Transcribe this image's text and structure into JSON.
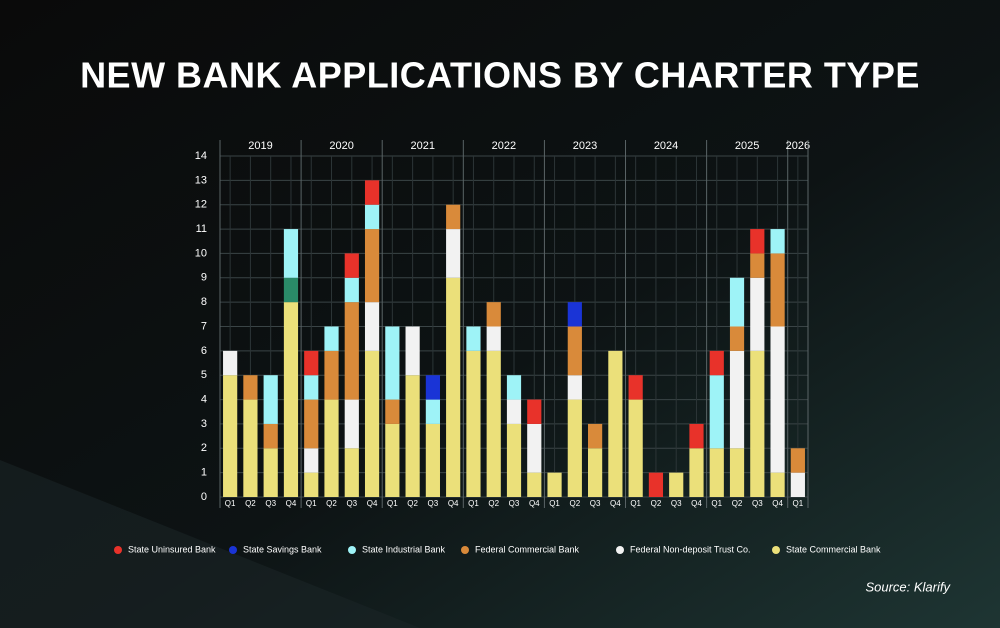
{
  "chart_data": {
    "type": "stacked-bar",
    "title": "NEW BANK APPLICATIONS BY CHARTER TYPE",
    "source": "Source: Klarify",
    "years": [
      "2019",
      "2020",
      "2021",
      "2022",
      "2023",
      "2024",
      "2025",
      "2026"
    ],
    "categories": [
      "Q1",
      "Q2",
      "Q3",
      "Q4",
      "Q1",
      "Q2",
      "Q3",
      "Q4",
      "Q1",
      "Q2",
      "Q3",
      "Q4",
      "Q1",
      "Q2",
      "Q3",
      "Q4",
      "Q1",
      "Q2",
      "Q3",
      "Q4",
      "Q1",
      "Q2",
      "Q3",
      "Q4",
      "Q1",
      "Q2",
      "Q3",
      "Q4",
      "Q1"
    ],
    "series": [
      {
        "name": "State Uninsured Bank",
        "color": "#e8322a",
        "values": [
          0,
          0,
          0,
          0,
          1,
          0,
          1,
          1,
          0,
          0,
          0,
          0,
          0,
          0,
          0,
          1,
          0,
          0,
          0,
          0,
          1,
          1,
          0,
          1,
          1,
          0,
          1,
          0,
          0
        ]
      },
      {
        "name": "State Savings Bank",
        "color": "#1a34d6",
        "values": [
          0,
          0,
          0,
          0,
          0,
          0,
          0,
          0,
          0,
          0,
          1,
          0,
          0,
          0,
          0,
          0,
          0,
          1,
          0,
          0,
          0,
          0,
          0,
          0,
          0,
          0,
          0,
          0,
          0
        ]
      },
      {
        "name": "State Industrial Bank",
        "color": "#9ef3f7",
        "values": [
          0,
          0,
          2,
          2,
          1,
          1,
          1,
          1,
          3,
          0,
          1,
          0,
          1,
          0,
          1,
          0,
          0,
          0,
          0,
          0,
          0,
          0,
          0,
          0,
          3,
          2,
          0,
          1,
          0
        ]
      },
      {
        "name": null,
        "color": "#2a8a68",
        "values": [
          0,
          0,
          0,
          1,
          0,
          0,
          0,
          0,
          0,
          0,
          0,
          0,
          0,
          0,
          0,
          0,
          0,
          0,
          0,
          0,
          0,
          0,
          0,
          0,
          0,
          0,
          0,
          0,
          0
        ]
      },
      {
        "name": "Federal Commercial Bank",
        "color": "#d98a3a",
        "values": [
          0,
          1,
          1,
          0,
          2,
          2,
          4,
          3,
          1,
          0,
          0,
          1,
          0,
          1,
          0,
          0,
          0,
          2,
          1,
          0,
          0,
          0,
          0,
          0,
          0,
          1,
          1,
          3,
          1
        ]
      },
      {
        "name": "Federal Non-deposit Trust Co.",
        "color": "#f2f2f2",
        "values": [
          1,
          0,
          0,
          0,
          1,
          0,
          2,
          2,
          0,
          2,
          0,
          2,
          0,
          1,
          1,
          2,
          0,
          1,
          0,
          0,
          0,
          0,
          0,
          0,
          0,
          4,
          3,
          6,
          1
        ]
      },
      {
        "name": "State Commercial Bank",
        "color": "#ebe07a",
        "values": [
          5,
          4,
          2,
          8,
          1,
          4,
          2,
          6,
          3,
          5,
          3,
          9,
          6,
          6,
          3,
          1,
          1,
          4,
          2,
          6,
          4,
          0,
          1,
          2,
          2,
          2,
          6,
          1,
          0
        ]
      }
    ],
    "ylim": [
      0,
      14
    ],
    "yticks": [
      0,
      1,
      2,
      3,
      4,
      5,
      6,
      7,
      8,
      9,
      10,
      11,
      12,
      13,
      14
    ],
    "grid": true
  }
}
